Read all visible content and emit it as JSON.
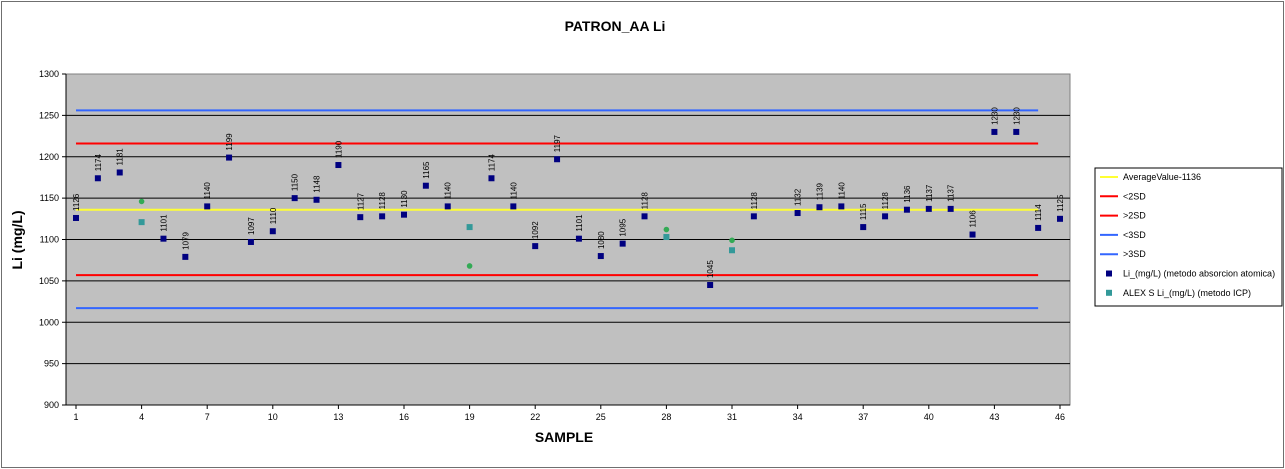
{
  "chart_data": {
    "type": "scatter",
    "title": "PATRON_AA Li",
    "xlabel": "SAMPLE",
    "ylabel": "Li (mg/L)",
    "xlim": [
      1,
      46
    ],
    "ylim": [
      900,
      1300
    ],
    "x_ticks": [
      "1",
      "4",
      "7",
      "10",
      "13",
      "16",
      "19",
      "22",
      "25",
      "28",
      "31",
      "34",
      "37",
      "40",
      "43",
      "46"
    ],
    "y_ticks": [
      "900",
      "950",
      "1000",
      "1050",
      "1100",
      "1150",
      "1200",
      "1250",
      "1300"
    ],
    "grid": true,
    "legend_position": "right",
    "reference_lines": [
      {
        "name": "AverageValue-1136",
        "value": 1136,
        "color": "#ffff33"
      },
      {
        "name": "<2SD",
        "value": 1057,
        "color": "#ff0000"
      },
      {
        "name": ">2SD",
        "value": 1216,
        "color": "#ff0000"
      },
      {
        "name": "<3SD",
        "value": 1017,
        "color": "#3366ff"
      },
      {
        "name": ">3SD",
        "value": 1256,
        "color": "#3366ff"
      }
    ],
    "series": [
      {
        "name": "Li_(mg/L) (metodo absorcion atomica)",
        "color": "#000080",
        "marker": "square",
        "points": [
          {
            "x": 1,
            "y": 1126,
            "label": "1126"
          },
          {
            "x": 2,
            "y": 1174,
            "label": "1174"
          },
          {
            "x": 3,
            "y": 1181,
            "label": "1181"
          },
          {
            "x": 5,
            "y": 1101,
            "label": "1101"
          },
          {
            "x": 6,
            "y": 1079,
            "label": "1079"
          },
          {
            "x": 7,
            "y": 1140,
            "label": "1140"
          },
          {
            "x": 8,
            "y": 1199,
            "label": "1199"
          },
          {
            "x": 9,
            "y": 1097,
            "label": "1097"
          },
          {
            "x": 10,
            "y": 1110,
            "label": "1110"
          },
          {
            "x": 11,
            "y": 1150,
            "label": "1150"
          },
          {
            "x": 12,
            "y": 1148,
            "label": "1148"
          },
          {
            "x": 13,
            "y": 1190,
            "label": "1190"
          },
          {
            "x": 14,
            "y": 1127,
            "label": "1127"
          },
          {
            "x": 15,
            "y": 1128,
            "label": "1128"
          },
          {
            "x": 16,
            "y": 1130,
            "label": "1130"
          },
          {
            "x": 17,
            "y": 1165,
            "label": "1165"
          },
          {
            "x": 18,
            "y": 1140,
            "label": "1140"
          },
          {
            "x": 20,
            "y": 1174,
            "label": "1174"
          },
          {
            "x": 21,
            "y": 1140,
            "label": "1140"
          },
          {
            "x": 22,
            "y": 1092,
            "label": "1092"
          },
          {
            "x": 23,
            "y": 1197,
            "label": "1197"
          },
          {
            "x": 24,
            "y": 1101,
            "label": "1101"
          },
          {
            "x": 25,
            "y": 1080,
            "label": "1080"
          },
          {
            "x": 26,
            "y": 1095,
            "label": "1095"
          },
          {
            "x": 27,
            "y": 1128,
            "label": "1128"
          },
          {
            "x": 30,
            "y": 1045,
            "label": "1045"
          },
          {
            "x": 32,
            "y": 1128,
            "label": "1128"
          },
          {
            "x": 34,
            "y": 1132,
            "label": "1132"
          },
          {
            "x": 35,
            "y": 1139,
            "label": "1139"
          },
          {
            "x": 36,
            "y": 1140,
            "label": "1140"
          },
          {
            "x": 37,
            "y": 1115,
            "label": "1115"
          },
          {
            "x": 38,
            "y": 1128,
            "label": "1128"
          },
          {
            "x": 39,
            "y": 1136,
            "label": "1136"
          },
          {
            "x": 40,
            "y": 1137,
            "label": "1137"
          },
          {
            "x": 41,
            "y": 1137,
            "label": "1137"
          },
          {
            "x": 42,
            "y": 1106,
            "label": "1106"
          },
          {
            "x": 43,
            "y": 1230,
            "label": "1230"
          },
          {
            "x": 44,
            "y": 1230,
            "label": "1230"
          },
          {
            "x": 45,
            "y": 1114,
            "label": "1114"
          },
          {
            "x": 46,
            "y": 1125,
            "label": "1125"
          }
        ]
      },
      {
        "name": "ALEX S Li_(mg/L) (metodo ICP)",
        "color": "#339999",
        "marker": "square",
        "points": [
          {
            "x": 4,
            "y": 1121
          },
          {
            "x": 19,
            "y": 1115
          },
          {
            "x": 28,
            "y": 1103
          },
          {
            "x": 31,
            "y": 1087
          }
        ]
      },
      {
        "color": "#33aa55",
        "marker": "circle",
        "points": [
          {
            "x": 4,
            "y": 1146
          },
          {
            "x": 19,
            "y": 1068
          },
          {
            "x": 28,
            "y": 1112
          },
          {
            "x": 31,
            "y": 1099
          }
        ]
      }
    ]
  }
}
